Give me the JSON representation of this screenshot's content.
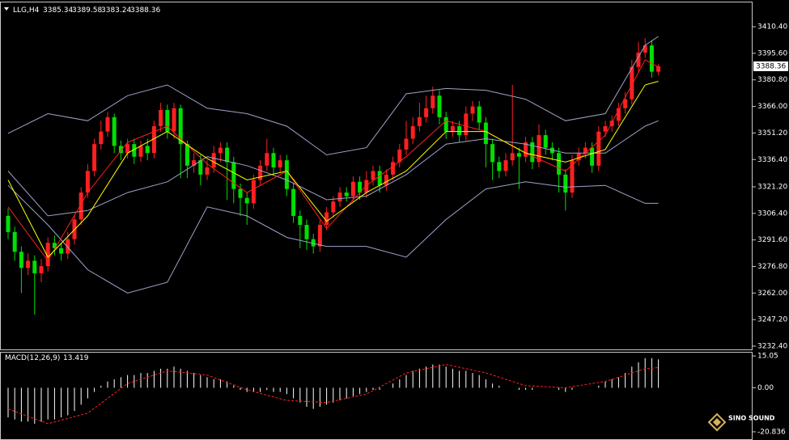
{
  "chart_data": [
    {
      "type": "candlestick",
      "symbol": "LLG,H4",
      "open": [
        3305,
        3296,
        3285,
        3276,
        3280,
        3273,
        3277,
        3290,
        3287,
        3284,
        3292,
        3303,
        3318,
        3330,
        3345,
        3352,
        3360,
        3344,
        3340,
        3345,
        3338,
        3344,
        3340,
        3355,
        3364,
        3352,
        3365,
        3345,
        3333,
        3336,
        3328,
        3332,
        3340,
        3343,
        3335,
        3320,
        3315,
        3312,
        3325,
        3333,
        3340,
        3332,
        3336,
        3320,
        3305,
        3300,
        3292,
        3288,
        3300,
        3307,
        3313,
        3318,
        3316,
        3324,
        3318,
        3325,
        3330,
        3322,
        3328,
        3335,
        3342,
        3348,
        3355,
        3360,
        3365,
        3372,
        3360,
        3352,
        3355,
        3350,
        3362,
        3366,
        3357,
        3345,
        3335,
        3330,
        3336,
        3340,
        3338,
        3346,
        3335,
        3350,
        3343,
        3340,
        3328,
        3318,
        3336,
        3340,
        3343,
        3333,
        3352,
        3355,
        3358,
        3365,
        3370,
        3388,
        3396,
        3400,
        3385.34
      ],
      "high": [
        3309,
        3299,
        3288,
        3284,
        3283,
        3281,
        3293,
        3294,
        3290,
        3296,
        3306,
        3321,
        3334,
        3348,
        3358,
        3363,
        3362,
        3347,
        3348,
        3348,
        3347,
        3348,
        3358,
        3368,
        3367,
        3368,
        3367,
        3347,
        3340,
        3339,
        3336,
        3344,
        3346,
        3346,
        3338,
        3323,
        3318,
        3328,
        3336,
        3348,
        3343,
        3339,
        3339,
        3323,
        3308,
        3303,
        3295,
        3303,
        3310,
        3316,
        3321,
        3321,
        3327,
        3327,
        3330,
        3333,
        3333,
        3331,
        3338,
        3345,
        3358,
        3360,
        3368,
        3372,
        3377,
        3375,
        3363,
        3358,
        3358,
        3366,
        3369,
        3369,
        3360,
        3348,
        3338,
        3340,
        3378,
        3343,
        3349,
        3349,
        3356,
        3353,
        3346,
        3343,
        3331,
        3339,
        3343,
        3346,
        3346,
        3355,
        3358,
        3361,
        3368,
        3374,
        3392,
        3402,
        3404,
        3403,
        3389.58
      ],
      "low": [
        3292,
        3280,
        3262,
        3272,
        3250,
        3268,
        3274,
        3283,
        3280,
        3281,
        3289,
        3300,
        3315,
        3327,
        3342,
        3349,
        3340,
        3336,
        3337,
        3334,
        3335,
        3336,
        3337,
        3352,
        3348,
        3348,
        3326,
        3326,
        3329,
        3322,
        3325,
        3329,
        3335,
        3314,
        3312,
        3305,
        3300,
        3309,
        3322,
        3330,
        3328,
        3329,
        3316,
        3301,
        3287,
        3286,
        3284,
        3285,
        3297,
        3304,
        3310,
        3313,
        3313,
        3314,
        3315,
        3322,
        3318,
        3319,
        3325,
        3332,
        3339,
        3345,
        3352,
        3357,
        3362,
        3356,
        3348,
        3349,
        3346,
        3347,
        3358,
        3353,
        3332,
        3325,
        3326,
        3327,
        3333,
        3320,
        3335,
        3331,
        3332,
        3339,
        3336,
        3318,
        3308,
        3315,
        3333,
        3337,
        3329,
        3330,
        3349,
        3352,
        3355,
        3362,
        3367,
        3385,
        3393,
        3382,
        3383.24
      ],
      "close": [
        3296,
        3285,
        3276,
        3280,
        3273,
        3277,
        3290,
        3287,
        3284,
        3292,
        3303,
        3318,
        3330,
        3345,
        3352,
        3360,
        3344,
        3340,
        3345,
        3338,
        3344,
        3340,
        3355,
        3364,
        3352,
        3365,
        3345,
        3333,
        3336,
        3328,
        3332,
        3340,
        3343,
        3335,
        3320,
        3315,
        3312,
        3325,
        3333,
        3340,
        3332,
        3336,
        3320,
        3305,
        3300,
        3292,
        3288,
        3300,
        3307,
        3313,
        3318,
        3316,
        3324,
        3318,
        3325,
        3330,
        3322,
        3328,
        3335,
        3342,
        3348,
        3355,
        3360,
        3365,
        3372,
        3360,
        3352,
        3355,
        3350,
        3362,
        3366,
        3357,
        3345,
        3335,
        3330,
        3336,
        3340,
        3338,
        3346,
        3335,
        3350,
        3343,
        3340,
        3328,
        3318,
        3336,
        3340,
        3343,
        3333,
        3352,
        3355,
        3358,
        3365,
        3370,
        3388,
        3396,
        3400,
        3385.34,
        3388.36
      ],
      "up_color": "#ff2020",
      "down_color": "#00e000",
      "overlays": [
        {
          "color": "#9ea3c8",
          "x": [
            0,
            6,
            12,
            18,
            24,
            30,
            36,
            42,
            48,
            54,
            60,
            66,
            72,
            78,
            84,
            90,
            96,
            98
          ],
          "values": [
            3351,
            3362,
            3358,
            3372,
            3378,
            3365,
            3362,
            3355,
            3339,
            3343,
            3373,
            3376,
            3375,
            3370,
            3358,
            3362,
            3400,
            3405
          ]
        },
        {
          "color": "#9ea3c8",
          "x": [
            0,
            6,
            12,
            18,
            24,
            30,
            36,
            42,
            48,
            54,
            60,
            66,
            72,
            78,
            84,
            90,
            96,
            98
          ],
          "values": [
            3330,
            3305,
            3308,
            3318,
            3324,
            3338,
            3333,
            3325,
            3314,
            3316,
            3328,
            3345,
            3348,
            3345,
            3340,
            3340,
            3355,
            3358
          ]
        },
        {
          "color": "#9ea3c8",
          "x": [
            0,
            6,
            12,
            18,
            24,
            30,
            36,
            42,
            48,
            54,
            60,
            66,
            72,
            78,
            84,
            90,
            96,
            98
          ],
          "values": [
            3322,
            3300,
            3275,
            3262,
            3268,
            3310,
            3305,
            3293,
            3288,
            3288,
            3282,
            3303,
            3320,
            3324,
            3321,
            3322,
            3312,
            3312
          ]
        },
        {
          "color": "#ff2020",
          "x": [
            0,
            6,
            12,
            18,
            24,
            30,
            36,
            42,
            48,
            54,
            60,
            66,
            72,
            78,
            84,
            90,
            96,
            98
          ],
          "values": [
            3310,
            3280,
            3318,
            3346,
            3355,
            3334,
            3318,
            3330,
            3298,
            3322,
            3338,
            3358,
            3352,
            3340,
            3330,
            3350,
            3392,
            3388
          ]
        },
        {
          "color": "#ffff00",
          "x": [
            0,
            6,
            12,
            18,
            24,
            30,
            36,
            42,
            48,
            54,
            60,
            66,
            72,
            78,
            84,
            90,
            96,
            98
          ],
          "values": [
            3325,
            3282,
            3305,
            3340,
            3352,
            3337,
            3325,
            3330,
            3302,
            3318,
            3330,
            3352,
            3352,
            3340,
            3335,
            3342,
            3378,
            3380
          ]
        }
      ],
      "ylim": [
        3230.6,
        3424.4
      ],
      "yticks": [
        {
          "value": 3410.4,
          "label": "3410.40"
        },
        {
          "value": 3395.6,
          "label": "3395.60"
        },
        {
          "value": 3380.8,
          "label": "3380.80"
        },
        {
          "value": 3366,
          "label": "3366.00"
        },
        {
          "value": 3351.2,
          "label": "3351.20"
        },
        {
          "value": 3336.4,
          "label": "3336.40"
        },
        {
          "value": 3321.2,
          "label": "3321.20"
        },
        {
          "value": 3306.4,
          "label": "3306.40"
        },
        {
          "value": 3291.6,
          "label": "3291.60"
        },
        {
          "value": 3276.8,
          "label": "3276.80"
        },
        {
          "value": 3262,
          "label": "3262.00"
        },
        {
          "value": 3247.2,
          "label": "3247.20"
        },
        {
          "value": 3232.4,
          "label": "3232.40"
        }
      ]
    },
    {
      "type": "macd",
      "title": "MACD(12,26,9)",
      "histogram": [
        -14,
        -15,
        -16,
        -16,
        -17,
        -16,
        -15,
        -15,
        -14,
        -13,
        -11,
        -8,
        -5,
        -2,
        1,
        3,
        4,
        5,
        6,
        6,
        7,
        7,
        8,
        9,
        9,
        10,
        9,
        8,
        7,
        6,
        5,
        4,
        4,
        3,
        1,
        -1,
        -2,
        -2,
        -2,
        -1,
        -2,
        -2,
        -3,
        -5,
        -7,
        -9,
        -10,
        -9,
        -8,
        -7,
        -6,
        -5,
        -4,
        -3,
        -2,
        -1,
        -1,
        0,
        2,
        4,
        6,
        8,
        9,
        10,
        11,
        11,
        10,
        9,
        8,
        8,
        7,
        6,
        4,
        2,
        1,
        0,
        0,
        -1,
        -1,
        -1,
        0,
        0,
        0,
        -1,
        -2,
        -1,
        0,
        0,
        0,
        1,
        3,
        4,
        5,
        7,
        10,
        12,
        14,
        14,
        13.419
      ],
      "histogram_color": "#ffffff",
      "signal": {
        "color": "#ff2020",
        "x": [
          0,
          6,
          12,
          18,
          24,
          30,
          36,
          42,
          48,
          54,
          60,
          66,
          72,
          78,
          84,
          90,
          96,
          98
        ],
        "values": [
          -10,
          -17,
          -12,
          2,
          8,
          6,
          -1,
          -6,
          -7,
          -3,
          7,
          11,
          7,
          1,
          0,
          3,
          9,
          9.473
        ]
      },
      "ylim": [
        -23.55,
        16.6
      ],
      "yticks": [
        15.05,
        {
          "value": 0,
          "label": "0.00"
        },
        -20.836
      ]
    }
  ],
  "logo": "SINO SOUND"
}
